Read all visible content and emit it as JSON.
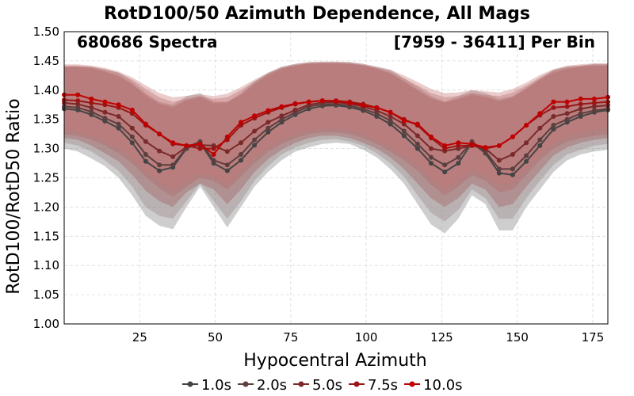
{
  "chart_data": {
    "type": "line",
    "title": "RotD100/50 Azimuth Dependence, All Mags",
    "annotations": [
      "680686 Spectra",
      "[7959 - 36411] Per Bin"
    ],
    "xlabel": "Hypocentral Azimuth",
    "ylabel": "RotD100/RotD50 Ratio",
    "xlim": [
      0,
      180
    ],
    "ylim": [
      1.0,
      1.5
    ],
    "xticks": [
      25,
      50,
      75,
      100,
      125,
      150,
      175
    ],
    "yticks": [
      1.0,
      1.05,
      1.1,
      1.15,
      1.2,
      1.25,
      1.3,
      1.35,
      1.4,
      1.45,
      1.5
    ],
    "grid": true,
    "legend_position": "bottom",
    "x": [
      0,
      4.5,
      9,
      13.5,
      18,
      22.5,
      27,
      31.5,
      36,
      40.5,
      45,
      49.5,
      54,
      58.5,
      63,
      67.5,
      72,
      76.5,
      81,
      85.5,
      90,
      94.5,
      99,
      103.5,
      108,
      112.5,
      117,
      121.5,
      126,
      130.5,
      135,
      139.5,
      144,
      148.5,
      153,
      157.5,
      162,
      166.5,
      171,
      175.5,
      180
    ],
    "series": [
      {
        "name": "1.0s",
        "color": "#444444",
        "band_color": "#7f7f7f",
        "values": [
          1.368,
          1.366,
          1.358,
          1.347,
          1.335,
          1.31,
          1.278,
          1.262,
          1.268,
          1.3,
          1.31,
          1.275,
          1.262,
          1.28,
          1.306,
          1.328,
          1.345,
          1.358,
          1.368,
          1.373,
          1.374,
          1.371,
          1.365,
          1.355,
          1.342,
          1.322,
          1.3,
          1.275,
          1.26,
          1.275,
          1.31,
          1.292,
          1.258,
          1.255,
          1.278,
          1.305,
          1.333,
          1.345,
          1.355,
          1.362,
          1.366
        ],
        "band_low": [
          1.3,
          1.295,
          1.283,
          1.27,
          1.25,
          1.22,
          1.185,
          1.168,
          1.162,
          1.2,
          1.235,
          1.2,
          1.165,
          1.2,
          1.235,
          1.26,
          1.28,
          1.295,
          1.302,
          1.308,
          1.31,
          1.308,
          1.298,
          1.285,
          1.265,
          1.24,
          1.205,
          1.17,
          1.155,
          1.18,
          1.22,
          1.205,
          1.16,
          1.16,
          1.2,
          1.23,
          1.26,
          1.28,
          1.29,
          1.295,
          1.298
        ],
        "band_high": [
          1.44,
          1.44,
          1.44,
          1.435,
          1.43,
          1.415,
          1.395,
          1.38,
          1.375,
          1.39,
          1.395,
          1.38,
          1.38,
          1.395,
          1.415,
          1.43,
          1.44,
          1.445,
          1.448,
          1.448,
          1.448,
          1.448,
          1.445,
          1.44,
          1.435,
          1.42,
          1.405,
          1.39,
          1.38,
          1.39,
          1.4,
          1.395,
          1.385,
          1.39,
          1.405,
          1.42,
          1.435,
          1.44,
          1.442,
          1.445,
          1.445
        ]
      },
      {
        "name": "2.0s",
        "color": "#5c3f3f",
        "band_color": "#9a8585",
        "values": [
          1.372,
          1.37,
          1.363,
          1.352,
          1.342,
          1.32,
          1.29,
          1.272,
          1.272,
          1.302,
          1.312,
          1.28,
          1.272,
          1.29,
          1.315,
          1.335,
          1.35,
          1.362,
          1.372,
          1.376,
          1.376,
          1.374,
          1.368,
          1.36,
          1.348,
          1.33,
          1.308,
          1.285,
          1.272,
          1.285,
          1.312,
          1.295,
          1.265,
          1.265,
          1.288,
          1.315,
          1.34,
          1.35,
          1.36,
          1.365,
          1.368
        ],
        "band_low": [
          1.31,
          1.305,
          1.295,
          1.28,
          1.262,
          1.235,
          1.2,
          1.185,
          1.18,
          1.21,
          1.24,
          1.21,
          1.18,
          1.21,
          1.245,
          1.27,
          1.29,
          1.302,
          1.31,
          1.315,
          1.316,
          1.312,
          1.305,
          1.292,
          1.275,
          1.252,
          1.22,
          1.19,
          1.175,
          1.195,
          1.23,
          1.215,
          1.18,
          1.18,
          1.215,
          1.245,
          1.272,
          1.29,
          1.298,
          1.305,
          1.308
        ],
        "band_high": [
          1.44,
          1.44,
          1.438,
          1.432,
          1.425,
          1.41,
          1.39,
          1.375,
          1.37,
          1.385,
          1.39,
          1.375,
          1.378,
          1.392,
          1.412,
          1.428,
          1.438,
          1.443,
          1.446,
          1.447,
          1.447,
          1.446,
          1.443,
          1.438,
          1.43,
          1.415,
          1.4,
          1.385,
          1.378,
          1.385,
          1.395,
          1.39,
          1.382,
          1.388,
          1.402,
          1.418,
          1.432,
          1.438,
          1.44,
          1.442,
          1.442
        ]
      },
      {
        "name": "5.0s",
        "color": "#7a2a2a",
        "band_color": "#a05a5a",
        "values": [
          1.378,
          1.376,
          1.37,
          1.362,
          1.355,
          1.335,
          1.312,
          1.296,
          1.286,
          1.303,
          1.306,
          1.305,
          1.295,
          1.31,
          1.33,
          1.345,
          1.356,
          1.366,
          1.375,
          1.379,
          1.379,
          1.377,
          1.372,
          1.365,
          1.355,
          1.342,
          1.322,
          1.3,
          1.296,
          1.3,
          1.305,
          1.3,
          1.28,
          1.29,
          1.31,
          1.335,
          1.355,
          1.36,
          1.368,
          1.372,
          1.374
        ],
        "band_low": [
          1.318,
          1.315,
          1.305,
          1.292,
          1.278,
          1.255,
          1.228,
          1.21,
          1.2,
          1.225,
          1.24,
          1.23,
          1.205,
          1.23,
          1.26,
          1.282,
          1.298,
          1.31,
          1.318,
          1.322,
          1.322,
          1.318,
          1.31,
          1.3,
          1.285,
          1.265,
          1.24,
          1.215,
          1.2,
          1.215,
          1.24,
          1.23,
          1.2,
          1.205,
          1.235,
          1.262,
          1.288,
          1.302,
          1.31,
          1.315,
          1.318
        ],
        "band_high": [
          1.44,
          1.44,
          1.438,
          1.432,
          1.424,
          1.41,
          1.392,
          1.378,
          1.372,
          1.382,
          1.388,
          1.38,
          1.38,
          1.392,
          1.41,
          1.425,
          1.436,
          1.442,
          1.445,
          1.446,
          1.446,
          1.445,
          1.442,
          1.436,
          1.428,
          1.415,
          1.4,
          1.387,
          1.38,
          1.385,
          1.392,
          1.388,
          1.382,
          1.388,
          1.402,
          1.418,
          1.43,
          1.436,
          1.44,
          1.442,
          1.442
        ]
      },
      {
        "name": "7.5s",
        "color": "#9a1515",
        "band_color": "#b46666",
        "values": [
          1.383,
          1.382,
          1.378,
          1.375,
          1.37,
          1.36,
          1.34,
          1.325,
          1.308,
          1.305,
          1.3,
          1.3,
          1.315,
          1.34,
          1.352,
          1.362,
          1.37,
          1.376,
          1.38,
          1.382,
          1.382,
          1.38,
          1.376,
          1.37,
          1.362,
          1.35,
          1.34,
          1.318,
          1.3,
          1.305,
          1.305,
          1.3,
          1.305,
          1.32,
          1.34,
          1.357,
          1.37,
          1.372,
          1.376,
          1.378,
          1.38
        ],
        "band_low": [
          1.325,
          1.322,
          1.315,
          1.305,
          1.292,
          1.275,
          1.252,
          1.232,
          1.218,
          1.235,
          1.25,
          1.245,
          1.23,
          1.252,
          1.275,
          1.295,
          1.308,
          1.318,
          1.325,
          1.328,
          1.328,
          1.325,
          1.318,
          1.308,
          1.295,
          1.28,
          1.262,
          1.238,
          1.22,
          1.235,
          1.255,
          1.245,
          1.225,
          1.23,
          1.255,
          1.28,
          1.3,
          1.312,
          1.318,
          1.322,
          1.325
        ],
        "band_high": [
          1.442,
          1.442,
          1.44,
          1.436,
          1.43,
          1.418,
          1.402,
          1.388,
          1.38,
          1.385,
          1.39,
          1.385,
          1.388,
          1.4,
          1.415,
          1.428,
          1.438,
          1.443,
          1.446,
          1.447,
          1.447,
          1.446,
          1.443,
          1.438,
          1.432,
          1.42,
          1.408,
          1.395,
          1.388,
          1.39,
          1.395,
          1.392,
          1.39,
          1.396,
          1.408,
          1.422,
          1.434,
          1.44,
          1.442,
          1.444,
          1.444
        ]
      },
      {
        "name": "10.0s",
        "color": "#c00000",
        "band_color": "#c87878",
        "values": [
          1.392,
          1.392,
          1.385,
          1.38,
          1.375,
          1.366,
          1.342,
          1.325,
          1.31,
          1.305,
          1.308,
          1.29,
          1.32,
          1.345,
          1.356,
          1.365,
          1.372,
          1.377,
          1.38,
          1.382,
          1.381,
          1.378,
          1.374,
          1.37,
          1.362,
          1.348,
          1.342,
          1.32,
          1.305,
          1.31,
          1.308,
          1.302,
          1.305,
          1.32,
          1.34,
          1.36,
          1.38,
          1.38,
          1.385,
          1.385,
          1.388
        ],
        "band_low": [
          1.332,
          1.33,
          1.322,
          1.312,
          1.3,
          1.285,
          1.262,
          1.245,
          1.232,
          1.245,
          1.258,
          1.252,
          1.24,
          1.262,
          1.285,
          1.302,
          1.315,
          1.325,
          1.332,
          1.335,
          1.335,
          1.332,
          1.325,
          1.315,
          1.302,
          1.288,
          1.272,
          1.25,
          1.232,
          1.245,
          1.262,
          1.255,
          1.238,
          1.242,
          1.265,
          1.29,
          1.31,
          1.322,
          1.328,
          1.332,
          1.335
        ],
        "band_high": [
          1.444,
          1.444,
          1.442,
          1.438,
          1.432,
          1.422,
          1.408,
          1.395,
          1.388,
          1.39,
          1.393,
          1.39,
          1.394,
          1.405,
          1.418,
          1.43,
          1.44,
          1.445,
          1.448,
          1.449,
          1.449,
          1.448,
          1.445,
          1.44,
          1.435,
          1.425,
          1.414,
          1.402,
          1.395,
          1.396,
          1.4,
          1.398,
          1.396,
          1.402,
          1.413,
          1.426,
          1.436,
          1.442,
          1.444,
          1.446,
          1.446
        ]
      }
    ]
  }
}
